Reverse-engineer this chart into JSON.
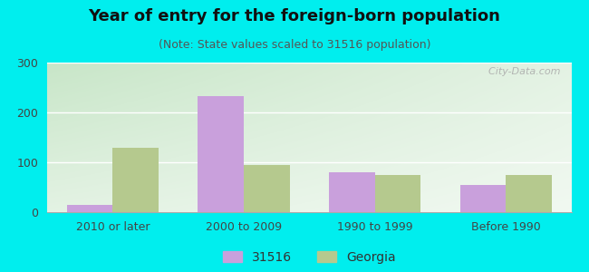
{
  "title": "Year of entry for the foreign-born population",
  "subtitle": "(Note: State values scaled to 31516 population)",
  "categories": [
    "2010 or later",
    "2000 to 2009",
    "1990 to 1999",
    "Before 1990"
  ],
  "series_31516": [
    15,
    233,
    80,
    55
  ],
  "series_georgia": [
    130,
    95,
    75,
    75
  ],
  "color_31516": "#c9a0dc",
  "color_georgia": "#b5c98e",
  "ylim": [
    0,
    300
  ],
  "yticks": [
    0,
    100,
    200,
    300
  ],
  "background_color": "#00eeee",
  "plot_bg_color_topleft": "#c8e6c8",
  "plot_bg_color_topright": "#e8f0e8",
  "plot_bg_color_bottomleft": "#f0f8f0",
  "plot_bg_color_bottomright": "#ffffff",
  "legend_label_1": "31516",
  "legend_label_2": "Georgia",
  "bar_width": 0.35,
  "title_fontsize": 13,
  "subtitle_fontsize": 9,
  "watermark": "  City-Data.com",
  "tick_fontsize": 9
}
